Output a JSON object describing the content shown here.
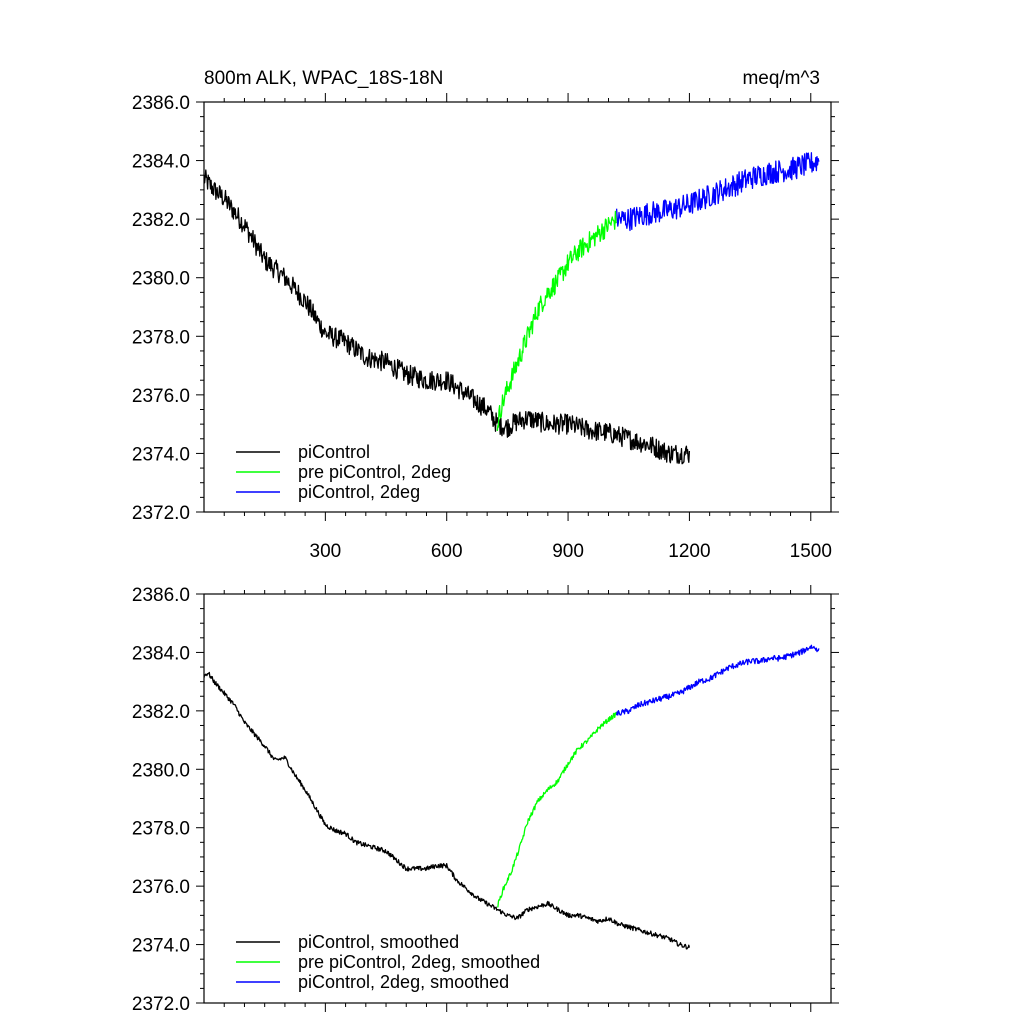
{
  "header": {
    "left": "800m ALK, WPAC_18S-18N",
    "right": "meq/m^3"
  },
  "colors": {
    "piControl": "#000000",
    "pre_piControl_2deg": "#00ff00",
    "piControl_2deg": "#0000ff"
  },
  "chart_data": [
    {
      "type": "line",
      "panel": "top",
      "xlim": [
        0,
        1550
      ],
      "ylim": [
        2372.0,
        2386.0
      ],
      "x_ticks": [
        300,
        600,
        900,
        1200,
        1500
      ],
      "x_tick_labels": [
        "300",
        "600",
        "900",
        "1200",
        "1500"
      ],
      "y_ticks": [
        2372.0,
        2374.0,
        2376.0,
        2378.0,
        2380.0,
        2382.0,
        2384.0,
        2386.0
      ],
      "y_tick_labels": [
        "2372.0",
        "2374.0",
        "2376.0",
        "2378.0",
        "2380.0",
        "2382.0",
        "2384.0",
        "2386.0"
      ],
      "legend_position": "bottom-left",
      "series": [
        {
          "name": "piControl",
          "color": "#000000",
          "noise": 0.35,
          "x": [
            0,
            25,
            50,
            100,
            150,
            200,
            250,
            300,
            350,
            400,
            450,
            500,
            550,
            600,
            650,
            700,
            725,
            750,
            775,
            800,
            850,
            900,
            950,
            1000,
            1050,
            1100,
            1150,
            1200
          ],
          "y": [
            2383.4,
            2383.0,
            2382.7,
            2381.8,
            2380.6,
            2380.0,
            2379.2,
            2378.1,
            2377.8,
            2377.3,
            2377.1,
            2376.7,
            2376.5,
            2376.5,
            2376.0,
            2375.5,
            2375.0,
            2374.9,
            2375.1,
            2375.2,
            2375.0,
            2375.0,
            2374.8,
            2374.7,
            2374.5,
            2374.3,
            2374.0,
            2374.0
          ]
        },
        {
          "name": "pre piControl, 2deg",
          "color": "#00ff00",
          "noise": 0.35,
          "x": [
            725,
            735,
            750,
            775,
            800,
            825,
            850,
            875,
            900,
            925,
            950,
            975,
            1000,
            1020
          ],
          "y": [
            2375.0,
            2375.6,
            2376.2,
            2377.1,
            2378.0,
            2378.9,
            2379.5,
            2379.9,
            2380.5,
            2380.9,
            2381.2,
            2381.5,
            2381.8,
            2382.0
          ]
        },
        {
          "name": "piControl, 2deg",
          "color": "#0000ff",
          "noise": 0.4,
          "x": [
            1020,
            1050,
            1100,
            1150,
            1200,
            1250,
            1300,
            1350,
            1400,
            1450,
            1500,
            1520
          ],
          "y": [
            2382.0,
            2382.0,
            2382.2,
            2382.3,
            2382.5,
            2382.8,
            2383.1,
            2383.4,
            2383.6,
            2383.7,
            2383.9,
            2384.0
          ]
        }
      ]
    },
    {
      "type": "line",
      "panel": "bottom",
      "xlim": [
        0,
        1550
      ],
      "ylim": [
        2372.0,
        2386.0
      ],
      "x_ticks": [
        300,
        600,
        900,
        1200,
        1500
      ],
      "y_ticks": [
        2372.0,
        2374.0,
        2376.0,
        2378.0,
        2380.0,
        2382.0,
        2384.0,
        2386.0
      ],
      "y_tick_labels": [
        "2372.0",
        "2374.0",
        "2376.0",
        "2378.0",
        "2380.0",
        "2382.0",
        "2384.0",
        "2386.0"
      ],
      "legend_position": "bottom-left",
      "series": [
        {
          "name": "piControl, smoothed",
          "color": "#000000",
          "noise": 0.08,
          "x": [
            0,
            10,
            25,
            50,
            75,
            100,
            125,
            150,
            175,
            200,
            225,
            250,
            275,
            300,
            325,
            350,
            375,
            400,
            425,
            450,
            475,
            500,
            525,
            550,
            575,
            600,
            625,
            650,
            675,
            700,
            725,
            750,
            775,
            800,
            825,
            850,
            875,
            900,
            925,
            950,
            975,
            1000,
            1025,
            1050,
            1075,
            1100,
            1125,
            1150,
            1175,
            1200
          ],
          "y": [
            2383.2,
            2383.3,
            2383.0,
            2382.6,
            2382.2,
            2381.6,
            2381.2,
            2380.8,
            2380.3,
            2380.4,
            2379.8,
            2379.3,
            2378.7,
            2378.1,
            2377.9,
            2377.8,
            2377.5,
            2377.4,
            2377.3,
            2377.2,
            2376.9,
            2376.6,
            2376.6,
            2376.6,
            2376.7,
            2376.7,
            2376.2,
            2375.9,
            2375.6,
            2375.4,
            2375.2,
            2375.0,
            2374.9,
            2375.2,
            2375.3,
            2375.4,
            2375.2,
            2375.0,
            2375.0,
            2374.9,
            2374.8,
            2374.9,
            2374.7,
            2374.6,
            2374.5,
            2374.4,
            2374.3,
            2374.2,
            2374.0,
            2373.9
          ]
        },
        {
          "name": "pre piControl, 2deg, smoothed",
          "color": "#00ff00",
          "noise": 0.08,
          "x": [
            725,
            740,
            760,
            780,
            800,
            825,
            850,
            875,
            900,
            925,
            950,
            975,
            1000,
            1020
          ],
          "y": [
            2375.3,
            2375.9,
            2376.5,
            2377.3,
            2378.2,
            2378.9,
            2379.3,
            2379.6,
            2380.2,
            2380.7,
            2381.0,
            2381.4,
            2381.7,
            2381.9
          ]
        },
        {
          "name": "piControl, 2deg, smoothed",
          "color": "#0000ff",
          "noise": 0.1,
          "x": [
            1020,
            1050,
            1075,
            1100,
            1125,
            1150,
            1175,
            1200,
            1225,
            1250,
            1275,
            1300,
            1325,
            1350,
            1375,
            1400,
            1425,
            1450,
            1475,
            1500,
            1520
          ],
          "y": [
            2381.9,
            2382.0,
            2382.2,
            2382.3,
            2382.4,
            2382.5,
            2382.6,
            2382.8,
            2383.0,
            2383.1,
            2383.3,
            2383.5,
            2383.6,
            2383.7,
            2383.7,
            2383.8,
            2383.8,
            2383.9,
            2384.0,
            2384.2,
            2384.1
          ]
        }
      ]
    }
  ]
}
